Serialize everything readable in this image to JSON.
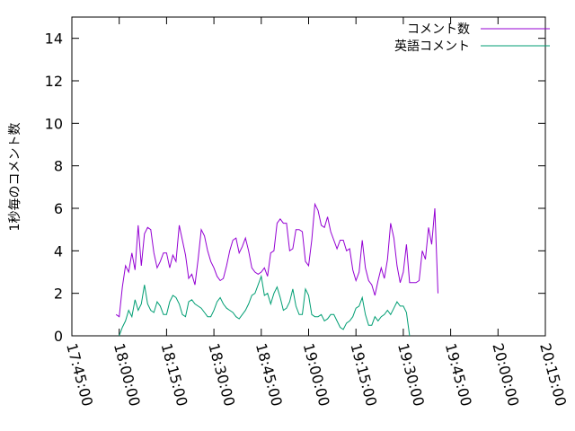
{
  "chart_data": {
    "type": "line",
    "ylabel": "1秒毎のコメント数",
    "xlabel": "",
    "ylim": [
      0,
      15
    ],
    "y_ticks": [
      0,
      2,
      4,
      6,
      8,
      10,
      12,
      14
    ],
    "x_ticks": [
      "17:45:00",
      "18:00:00",
      "18:15:00",
      "18:30:00",
      "18:45:00",
      "19:00:00",
      "19:15:00",
      "19:30:00",
      "19:45:00",
      "20:00:00",
      "20:15:00"
    ],
    "grid": false,
    "legend_position": "top-right",
    "series": [
      {
        "name": "コメント数",
        "color": "#9400d3",
        "points": [
          [
            "17:59:00",
            1.0
          ],
          [
            "18:00:00",
            0.9
          ],
          [
            "18:01:00",
            2.3
          ],
          [
            "18:02:00",
            3.3
          ],
          [
            "18:03:00",
            3.0
          ],
          [
            "18:04:00",
            3.9
          ],
          [
            "18:05:00",
            3.1
          ],
          [
            "18:06:00",
            5.2
          ],
          [
            "18:07:00",
            3.3
          ],
          [
            "18:08:00",
            4.8
          ],
          [
            "18:09:00",
            5.1
          ],
          [
            "18:10:00",
            5.0
          ],
          [
            "18:11:00",
            3.9
          ],
          [
            "18:12:00",
            3.2
          ],
          [
            "18:13:00",
            3.5
          ],
          [
            "18:14:00",
            3.9
          ],
          [
            "18:15:00",
            3.9
          ],
          [
            "18:16:00",
            3.2
          ],
          [
            "18:17:00",
            3.8
          ],
          [
            "18:18:00",
            3.5
          ],
          [
            "18:19:00",
            5.2
          ],
          [
            "18:20:00",
            4.5
          ],
          [
            "18:21:00",
            3.8
          ],
          [
            "18:22:00",
            2.7
          ],
          [
            "18:23:00",
            2.9
          ],
          [
            "18:24:00",
            2.4
          ],
          [
            "18:25:00",
            3.6
          ],
          [
            "18:26:00",
            5.0
          ],
          [
            "18:27:00",
            4.7
          ],
          [
            "18:28:00",
            4.0
          ],
          [
            "18:29:00",
            3.5
          ],
          [
            "18:30:00",
            3.2
          ],
          [
            "18:31:00",
            2.8
          ],
          [
            "18:32:00",
            2.6
          ],
          [
            "18:33:00",
            2.7
          ],
          [
            "18:34:00",
            3.3
          ],
          [
            "18:35:00",
            4.0
          ],
          [
            "18:36:00",
            4.5
          ],
          [
            "18:37:00",
            4.6
          ],
          [
            "18:38:00",
            3.9
          ],
          [
            "18:39:00",
            4.2
          ],
          [
            "18:40:00",
            4.6
          ],
          [
            "18:41:00",
            4.0
          ],
          [
            "18:42:00",
            3.2
          ],
          [
            "18:43:00",
            3.0
          ],
          [
            "18:44:00",
            2.9
          ],
          [
            "18:45:00",
            3.0
          ],
          [
            "18:46:00",
            3.2
          ],
          [
            "18:47:00",
            2.8
          ],
          [
            "18:48:00",
            3.9
          ],
          [
            "18:49:00",
            4.0
          ],
          [
            "18:50:00",
            5.3
          ],
          [
            "18:51:00",
            5.5
          ],
          [
            "18:52:00",
            5.3
          ],
          [
            "18:53:00",
            5.3
          ],
          [
            "18:54:00",
            4.0
          ],
          [
            "18:55:00",
            4.1
          ],
          [
            "18:56:00",
            5.0
          ],
          [
            "18:57:00",
            5.0
          ],
          [
            "18:58:00",
            4.9
          ],
          [
            "18:59:00",
            3.5
          ],
          [
            "19:00:00",
            3.3
          ],
          [
            "19:01:00",
            4.5
          ],
          [
            "19:02:00",
            6.2
          ],
          [
            "19:03:00",
            5.9
          ],
          [
            "19:04:00",
            5.2
          ],
          [
            "19:05:00",
            5.1
          ],
          [
            "19:06:00",
            5.6
          ],
          [
            "19:07:00",
            4.9
          ],
          [
            "19:08:00",
            4.5
          ],
          [
            "19:09:00",
            4.1
          ],
          [
            "19:10:00",
            4.5
          ],
          [
            "19:11:00",
            4.5
          ],
          [
            "19:12:00",
            4.0
          ],
          [
            "19:13:00",
            4.1
          ],
          [
            "19:14:00",
            3.1
          ],
          [
            "19:15:00",
            2.6
          ],
          [
            "19:16:00",
            3.0
          ],
          [
            "19:17:00",
            4.5
          ],
          [
            "19:18:00",
            3.2
          ],
          [
            "19:19:00",
            2.6
          ],
          [
            "19:20:00",
            2.4
          ],
          [
            "19:21:00",
            1.9
          ],
          [
            "19:22:00",
            2.6
          ],
          [
            "19:23:00",
            3.2
          ],
          [
            "19:24:00",
            2.7
          ],
          [
            "19:25:00",
            3.6
          ],
          [
            "19:26:00",
            5.3
          ],
          [
            "19:27:00",
            4.6
          ],
          [
            "19:28:00",
            3.3
          ],
          [
            "19:29:00",
            2.5
          ],
          [
            "19:30:00",
            3.0
          ],
          [
            "19:31:00",
            4.3
          ],
          [
            "19:32:00",
            2.5
          ],
          [
            "19:33:00",
            2.5
          ],
          [
            "19:34:00",
            2.5
          ],
          [
            "19:35:00",
            2.6
          ],
          [
            "19:36:00",
            4.0
          ],
          [
            "19:37:00",
            3.6
          ],
          [
            "19:38:00",
            5.1
          ],
          [
            "19:39:00",
            4.3
          ],
          [
            "19:40:00",
            6.0
          ],
          [
            "19:41:00",
            2.0
          ]
        ]
      },
      {
        "name": "英語コメント",
        "color": "#009e73",
        "points": [
          [
            "18:00:00",
            0.0
          ],
          [
            "18:01:00",
            0.4
          ],
          [
            "18:02:00",
            0.7
          ],
          [
            "18:03:00",
            1.2
          ],
          [
            "18:04:00",
            0.9
          ],
          [
            "18:05:00",
            1.7
          ],
          [
            "18:06:00",
            1.2
          ],
          [
            "18:07:00",
            1.5
          ],
          [
            "18:08:00",
            2.4
          ],
          [
            "18:09:00",
            1.5
          ],
          [
            "18:10:00",
            1.2
          ],
          [
            "18:11:00",
            1.1
          ],
          [
            "18:12:00",
            1.6
          ],
          [
            "18:13:00",
            1.4
          ],
          [
            "18:14:00",
            1.0
          ],
          [
            "18:15:00",
            1.0
          ],
          [
            "18:16:00",
            1.6
          ],
          [
            "18:17:00",
            1.9
          ],
          [
            "18:18:00",
            1.8
          ],
          [
            "18:19:00",
            1.5
          ],
          [
            "18:20:00",
            1.0
          ],
          [
            "18:21:00",
            0.9
          ],
          [
            "18:22:00",
            1.6
          ],
          [
            "18:23:00",
            1.7
          ],
          [
            "18:24:00",
            1.5
          ],
          [
            "18:25:00",
            1.4
          ],
          [
            "18:26:00",
            1.3
          ],
          [
            "18:27:00",
            1.1
          ],
          [
            "18:28:00",
            0.9
          ],
          [
            "18:29:00",
            0.9
          ],
          [
            "18:30:00",
            1.2
          ],
          [
            "18:31:00",
            1.6
          ],
          [
            "18:32:00",
            1.8
          ],
          [
            "18:33:00",
            1.5
          ],
          [
            "18:34:00",
            1.3
          ],
          [
            "18:35:00",
            1.2
          ],
          [
            "18:36:00",
            1.1
          ],
          [
            "18:37:00",
            0.9
          ],
          [
            "18:38:00",
            0.8
          ],
          [
            "18:39:00",
            1.0
          ],
          [
            "18:40:00",
            1.2
          ],
          [
            "18:41:00",
            1.5
          ],
          [
            "18:42:00",
            1.9
          ],
          [
            "18:43:00",
            2.0
          ],
          [
            "18:44:00",
            2.4
          ],
          [
            "18:45:00",
            2.8
          ],
          [
            "18:46:00",
            1.9
          ],
          [
            "18:47:00",
            2.0
          ],
          [
            "18:48:00",
            1.5
          ],
          [
            "18:49:00",
            2.0
          ],
          [
            "18:50:00",
            2.3
          ],
          [
            "18:51:00",
            1.8
          ],
          [
            "18:52:00",
            1.2
          ],
          [
            "18:53:00",
            1.3
          ],
          [
            "18:54:00",
            1.6
          ],
          [
            "18:55:00",
            2.2
          ],
          [
            "18:56:00",
            1.4
          ],
          [
            "18:57:00",
            1.0
          ],
          [
            "18:58:00",
            1.0
          ],
          [
            "18:59:00",
            2.2
          ],
          [
            "19:00:00",
            1.9
          ],
          [
            "19:01:00",
            1.0
          ],
          [
            "19:02:00",
            0.9
          ],
          [
            "19:03:00",
            0.9
          ],
          [
            "19:04:00",
            1.0
          ],
          [
            "19:05:00",
            0.7
          ],
          [
            "19:06:00",
            0.8
          ],
          [
            "19:07:00",
            1.0
          ],
          [
            "19:08:00",
            1.0
          ],
          [
            "19:09:00",
            0.7
          ],
          [
            "19:10:00",
            0.4
          ],
          [
            "19:11:00",
            0.3
          ],
          [
            "19:12:00",
            0.6
          ],
          [
            "19:13:00",
            0.7
          ],
          [
            "19:14:00",
            0.9
          ],
          [
            "19:15:00",
            1.3
          ],
          [
            "19:16:00",
            1.4
          ],
          [
            "19:17:00",
            1.8
          ],
          [
            "19:18:00",
            1.0
          ],
          [
            "19:19:00",
            0.5
          ],
          [
            "19:20:00",
            0.5
          ],
          [
            "19:21:00",
            0.9
          ],
          [
            "19:22:00",
            0.7
          ],
          [
            "19:23:00",
            0.9
          ],
          [
            "19:24:00",
            1.0
          ],
          [
            "19:25:00",
            1.2
          ],
          [
            "19:26:00",
            1.0
          ],
          [
            "19:27:00",
            1.3
          ],
          [
            "19:28:00",
            1.6
          ],
          [
            "19:29:00",
            1.4
          ],
          [
            "19:30:00",
            1.4
          ],
          [
            "19:31:00",
            1.1
          ],
          [
            "19:32:00",
            0.0
          ]
        ]
      }
    ]
  }
}
